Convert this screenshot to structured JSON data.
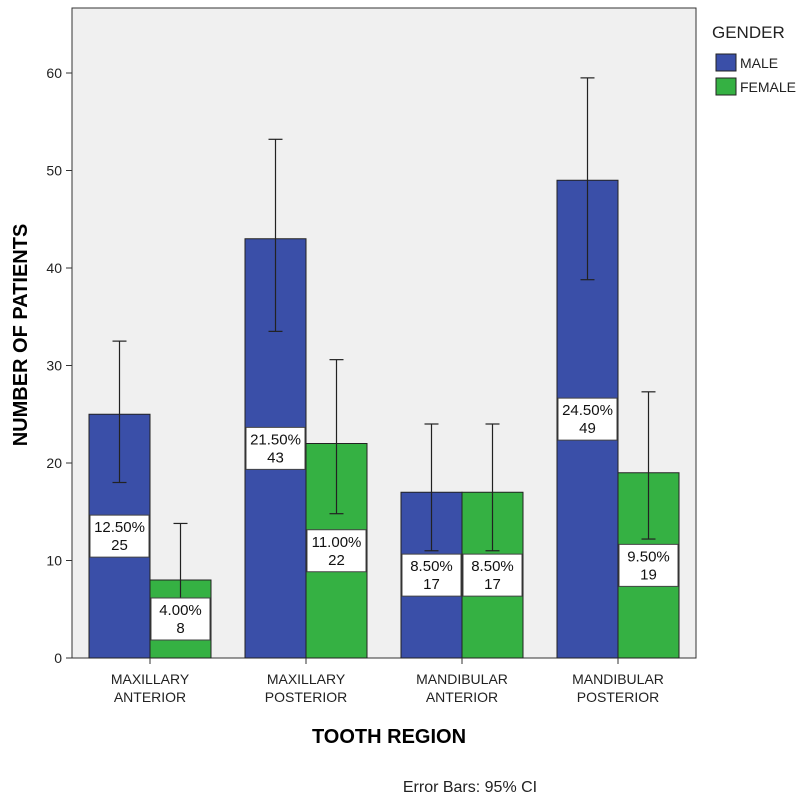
{
  "chart_data": {
    "type": "bar",
    "xlabel": "TOOTH REGION",
    "ylabel": "NUMBER OF PATIENTS",
    "ylim": [
      0,
      70
    ],
    "yticks": [
      "0",
      "10",
      "20",
      "30",
      "40",
      "50",
      "60"
    ],
    "categories": [
      [
        "MAXILLARY",
        "ANTERIOR"
      ],
      [
        "MAXILLARY",
        "POSTERIOR"
      ],
      [
        "MANDIBULAR",
        "ANTERIOR"
      ],
      [
        "MANDIBULAR",
        "POSTERIOR"
      ]
    ],
    "legend": {
      "title": "GENDER",
      "position": "right"
    },
    "series": [
      {
        "name": "MALE",
        "color": "#3a4fa8",
        "values": [
          25,
          43,
          17,
          49
        ],
        "ci": [
          [
            18,
            32.5
          ],
          [
            33.5,
            53.2
          ],
          [
            11,
            24
          ],
          [
            38.8,
            59.5
          ]
        ],
        "labels": [
          [
            "12.50%",
            "25"
          ],
          [
            "21.50%",
            "43"
          ],
          [
            "8.50%",
            "17"
          ],
          [
            "24.50%",
            "49"
          ]
        ]
      },
      {
        "name": "FEMALE",
        "color": "#35b143",
        "values": [
          8,
          22,
          17,
          19
        ],
        "ci": [
          [
            3.5,
            13.8
          ],
          [
            14.8,
            30.6
          ],
          [
            11,
            24
          ],
          [
            12.2,
            27.3
          ]
        ],
        "labels": [
          [
            "4.00%",
            "8"
          ],
          [
            "11.00%",
            "22"
          ],
          [
            "8.50%",
            "17"
          ],
          [
            "9.50%",
            "19"
          ]
        ]
      }
    ],
    "note": "Error Bars: 95% CI",
    "grid": false
  }
}
